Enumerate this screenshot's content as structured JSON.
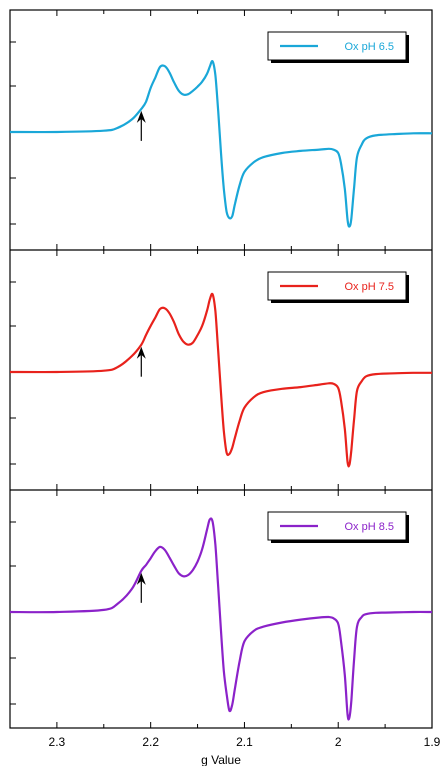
{
  "chart_data": {
    "type": "line",
    "xlabel": "g Value",
    "x_ticks": [
      2.3,
      2.2,
      2.1,
      2.0,
      1.9
    ],
    "x_tick_labels": [
      "2.3",
      "2.2",
      "2.1",
      "2",
      "1.9"
    ],
    "xlim": [
      2.35,
      1.9
    ],
    "x_reversed": true,
    "grid": false,
    "arrow_x": 2.21,
    "panels": [
      {
        "series_name": "Ox pH 6.5",
        "color": "#1aa7d8",
        "legend_position": "top-right",
        "x": [
          2.35,
          2.3,
          2.25,
          2.235,
          2.22,
          2.21,
          2.205,
          2.2,
          2.195,
          2.19,
          2.185,
          2.18,
          2.175,
          2.17,
          2.165,
          2.16,
          2.155,
          2.15,
          2.145,
          2.14,
          2.137,
          2.134,
          2.131,
          2.128,
          2.125,
          2.122,
          2.119,
          2.116,
          2.113,
          2.11,
          2.105,
          2.1,
          2.09,
          2.08,
          2.06,
          2.04,
          2.02,
          2.01,
          2.005,
          2.0,
          1.997,
          1.993,
          1.99,
          1.988,
          1.986,
          1.983,
          1.98,
          1.975,
          1.97,
          1.96,
          1.94,
          1.92,
          1.9
        ],
        "y": [
          0,
          0,
          0.03,
          0.1,
          0.3,
          0.55,
          0.72,
          1.05,
          1.3,
          1.55,
          1.57,
          1.42,
          1.18,
          0.98,
          0.89,
          0.9,
          0.98,
          1.08,
          1.2,
          1.38,
          1.55,
          1.68,
          1.35,
          0.5,
          -0.5,
          -1.35,
          -1.9,
          -2.05,
          -2.0,
          -1.7,
          -1.25,
          -0.95,
          -0.72,
          -0.6,
          -0.5,
          -0.45,
          -0.42,
          -0.4,
          -0.42,
          -0.5,
          -0.75,
          -1.35,
          -2.1,
          -2.25,
          -2.05,
          -1.3,
          -0.6,
          -0.3,
          -0.15,
          -0.08,
          -0.05,
          -0.03,
          -0.03
        ]
      },
      {
        "series_name": "Ox pH 7.5",
        "color": "#e8221c",
        "legend_position": "top-right",
        "x": [
          2.35,
          2.3,
          2.25,
          2.235,
          2.22,
          2.21,
          2.205,
          2.2,
          2.195,
          2.19,
          2.185,
          2.18,
          2.175,
          2.17,
          2.165,
          2.16,
          2.155,
          2.15,
          2.145,
          2.14,
          2.137,
          2.134,
          2.131,
          2.128,
          2.125,
          2.122,
          2.119,
          2.116,
          2.113,
          2.11,
          2.105,
          2.1,
          2.09,
          2.08,
          2.06,
          2.04,
          2.02,
          2.01,
          2.005,
          2.0,
          1.997,
          1.993,
          1.99,
          1.988,
          1.986,
          1.983,
          1.98,
          1.975,
          1.97,
          1.96,
          1.94,
          1.92,
          1.9
        ],
        "y": [
          0,
          0,
          0.03,
          0.12,
          0.38,
          0.65,
          0.88,
          1.1,
          1.3,
          1.5,
          1.52,
          1.4,
          1.18,
          0.9,
          0.72,
          0.65,
          0.7,
          0.88,
          1.1,
          1.45,
          1.72,
          1.85,
          1.45,
          0.5,
          -0.5,
          -1.4,
          -1.92,
          -1.95,
          -1.8,
          -1.55,
          -1.15,
          -0.85,
          -0.6,
          -0.48,
          -0.4,
          -0.36,
          -0.3,
          -0.27,
          -0.28,
          -0.38,
          -0.68,
          -1.35,
          -2.15,
          -2.2,
          -1.85,
          -1.1,
          -0.45,
          -0.22,
          -0.1,
          -0.05,
          -0.03,
          -0.02,
          -0.02
        ]
      },
      {
        "series_name": "Ox pH 8.5",
        "color": "#8b22c9",
        "legend_position": "top-right",
        "x": [
          2.35,
          2.3,
          2.25,
          2.235,
          2.22,
          2.21,
          2.205,
          2.2,
          2.195,
          2.19,
          2.185,
          2.18,
          2.175,
          2.17,
          2.165,
          2.16,
          2.155,
          2.15,
          2.145,
          2.14,
          2.137,
          2.134,
          2.131,
          2.128,
          2.125,
          2.122,
          2.119,
          2.116,
          2.113,
          2.11,
          2.105,
          2.1,
          2.09,
          2.08,
          2.06,
          2.04,
          2.02,
          2.01,
          2.005,
          2.0,
          1.997,
          1.993,
          1.99,
          1.988,
          1.986,
          1.983,
          1.98,
          1.975,
          1.97,
          1.96,
          1.94,
          1.92,
          1.9
        ],
        "y": [
          0,
          0,
          0.05,
          0.2,
          0.55,
          0.98,
          1.12,
          1.28,
          1.45,
          1.55,
          1.48,
          1.3,
          1.1,
          0.92,
          0.85,
          0.88,
          1.0,
          1.2,
          1.5,
          1.95,
          2.2,
          2.15,
          1.6,
          0.6,
          -0.45,
          -1.4,
          -1.95,
          -2.35,
          -2.2,
          -1.8,
          -1.15,
          -0.7,
          -0.45,
          -0.35,
          -0.25,
          -0.18,
          -0.13,
          -0.12,
          -0.15,
          -0.28,
          -0.7,
          -1.5,
          -2.45,
          -2.5,
          -2.1,
          -1.1,
          -0.35,
          -0.12,
          -0.05,
          -0.02,
          -0.01,
          0,
          0
        ]
      }
    ]
  }
}
